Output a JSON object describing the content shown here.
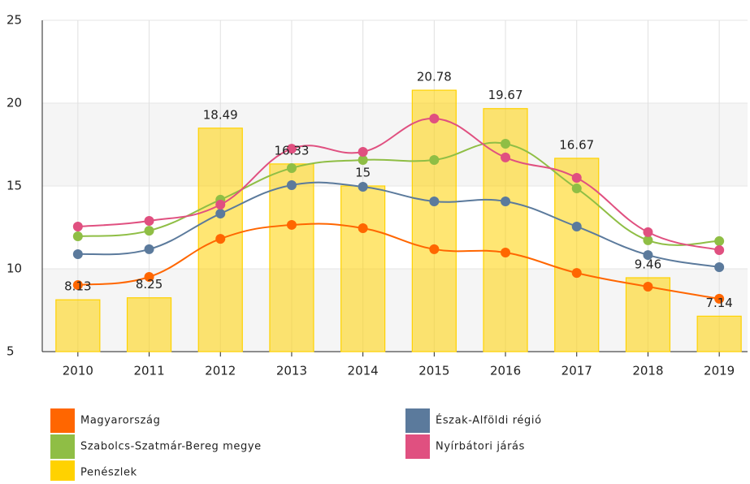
{
  "chart_data": {
    "type": "combo",
    "categories": [
      "2010",
      "2011",
      "2012",
      "2013",
      "2014",
      "2015",
      "2016",
      "2017",
      "2018",
      "2019"
    ],
    "ylim": [
      5,
      25
    ],
    "yticks": [
      5,
      10,
      15,
      20,
      25
    ],
    "grid": true,
    "series": [
      {
        "name": "Magyarország",
        "type": "line",
        "color": "#ff6600",
        "values": [
          9.02,
          9.51,
          11.81,
          12.65,
          12.45,
          11.18,
          10.98,
          9.75,
          8.92,
          8.19
        ]
      },
      {
        "name": "Észak-Alföldi régió",
        "type": "line",
        "color": "#5b7a9c",
        "values": [
          10.88,
          11.18,
          13.33,
          15.05,
          14.95,
          14.07,
          14.07,
          12.55,
          10.83,
          10.1
        ]
      },
      {
        "name": "Szabolcs-Szatmár-Bereg megye",
        "type": "line",
        "color": "#8fbe45",
        "values": [
          11.96,
          12.3,
          14.17,
          16.08,
          16.57,
          16.57,
          17.55,
          14.85,
          11.72,
          11.67
        ]
      },
      {
        "name": "Nyírbátori járás",
        "type": "line",
        "color": "#e05080",
        "values": [
          12.55,
          12.89,
          13.87,
          17.25,
          17.06,
          19.07,
          16.72,
          15.49,
          12.21,
          11.13
        ]
      },
      {
        "name": "Penészlek",
        "type": "bar",
        "color": "#ffd200",
        "values": [
          8.13,
          8.25,
          18.49,
          16.33,
          15,
          20.78,
          19.67,
          16.67,
          9.46,
          7.14
        ]
      }
    ]
  }
}
